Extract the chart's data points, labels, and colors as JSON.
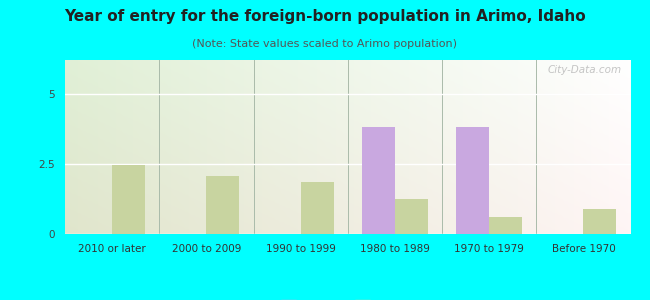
{
  "title": "Year of entry for the foreign-born population in Arimo, Idaho",
  "subtitle": "(Note: State values scaled to Arimo population)",
  "categories": [
    "2010 or later",
    "2000 to 2009",
    "1990 to 1999",
    "1980 to 1989",
    "1970 to 1979",
    "Before 1970"
  ],
  "arimo_values": [
    0,
    0,
    0,
    3.8,
    3.8,
    0
  ],
  "idaho_values": [
    2.45,
    2.05,
    1.85,
    1.25,
    0.6,
    0.9
  ],
  "arimo_color": "#c9a8e0",
  "idaho_color": "#c8d4a0",
  "background_color": "#00ffff",
  "plot_bg_color": "#e8f2e0",
  "ylim": [
    0,
    6.2
  ],
  "yticks": [
    0,
    2.5,
    5
  ],
  "bar_width": 0.35,
  "title_fontsize": 11,
  "subtitle_fontsize": 8,
  "tick_fontsize": 7.5,
  "legend_fontsize": 9
}
